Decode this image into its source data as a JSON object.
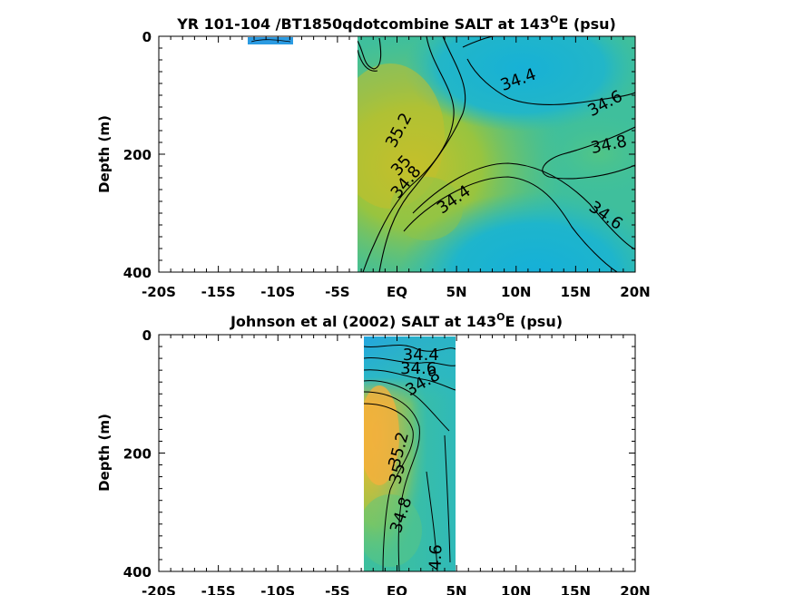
{
  "chart_data": [
    {
      "type": "heatmap",
      "title": "YR 101-104 /BT1850qdotcombine SALT at 143",
      "title_sup": "O",
      "title_tail": "E (psu)",
      "ylabel": "Depth (m)",
      "xlim": [
        -20,
        20
      ],
      "ylim": [
        0,
        400
      ],
      "y_reversed": true,
      "xticks": [
        -20,
        -15,
        -10,
        -5,
        0,
        5,
        10,
        15,
        20
      ],
      "xtick_labels": [
        "-20S",
        "-15S",
        "-10S",
        "-5S",
        "EQ",
        "5N",
        "10N",
        "15N",
        "20N"
      ],
      "yticks": [
        0,
        200,
        400
      ],
      "ytick_labels": [
        "0",
        "200",
        "400"
      ],
      "contour_labels": [
        {
          "text": "34.4",
          "lon": 10.2,
          "depth": 75,
          "angle": -20
        },
        {
          "text": "34.6",
          "lon": 17.5,
          "depth": 115,
          "angle": -28
        },
        {
          "text": "35.2",
          "lon": 0.2,
          "depth": 160,
          "angle": -62
        },
        {
          "text": "34.8",
          "lon": 17.8,
          "depth": 185,
          "angle": -12
        },
        {
          "text": "35",
          "lon": 0.4,
          "depth": 220,
          "angle": -48
        },
        {
          "text": "34.8",
          "lon": 0.8,
          "depth": 248,
          "angle": -50
        },
        {
          "text": "34.4",
          "lon": 4.8,
          "depth": 278,
          "angle": -35
        },
        {
          "text": "34.6",
          "lon": 17.5,
          "depth": 305,
          "angle": 35
        }
      ],
      "colors": {
        "low": "#1ab2d6",
        "mid": "#45c49a",
        "high": "#c8c12a"
      }
    },
    {
      "type": "heatmap",
      "title": "Johnson et al (2002) SALT at 143",
      "title_sup": "O",
      "title_tail": "E (psu)",
      "ylabel": "Depth (m)",
      "xlim": [
        -20,
        20
      ],
      "ylim": [
        0,
        400
      ],
      "y_reversed": true,
      "xticks": [
        -20,
        -15,
        -10,
        -5,
        0,
        5,
        10,
        15,
        20
      ],
      "xtick_labels": [
        "-20S",
        "-15S",
        "-10S",
        "-5S",
        "EQ",
        "5N",
        "10N",
        "15N",
        "20N"
      ],
      "yticks": [
        0,
        200,
        400
      ],
      "ytick_labels": [
        "0",
        "200",
        "400"
      ],
      "data_lon_range": [
        -2,
        5
      ],
      "contour_labels": [
        {
          "text": "34.4",
          "lon": 2.0,
          "depth": 35,
          "angle": 0
        },
        {
          "text": "34.6",
          "lon": 1.8,
          "depth": 58,
          "angle": 0
        },
        {
          "text": "34.8",
          "lon": 2.2,
          "depth": 82,
          "angle": -30
        },
        {
          "text": "35.2",
          "lon": 0.2,
          "depth": 195,
          "angle": -75
        },
        {
          "text": "35",
          "lon": 0.1,
          "depth": 235,
          "angle": -75
        },
        {
          "text": "34.8",
          "lon": 0.4,
          "depth": 305,
          "angle": -72
        },
        {
          "text": "34.6",
          "lon": 3.3,
          "depth": 385,
          "angle": -88
        }
      ],
      "colors": {
        "low": "#1ab2d6",
        "mid": "#45c49a",
        "high": "#f5b13a"
      }
    }
  ]
}
